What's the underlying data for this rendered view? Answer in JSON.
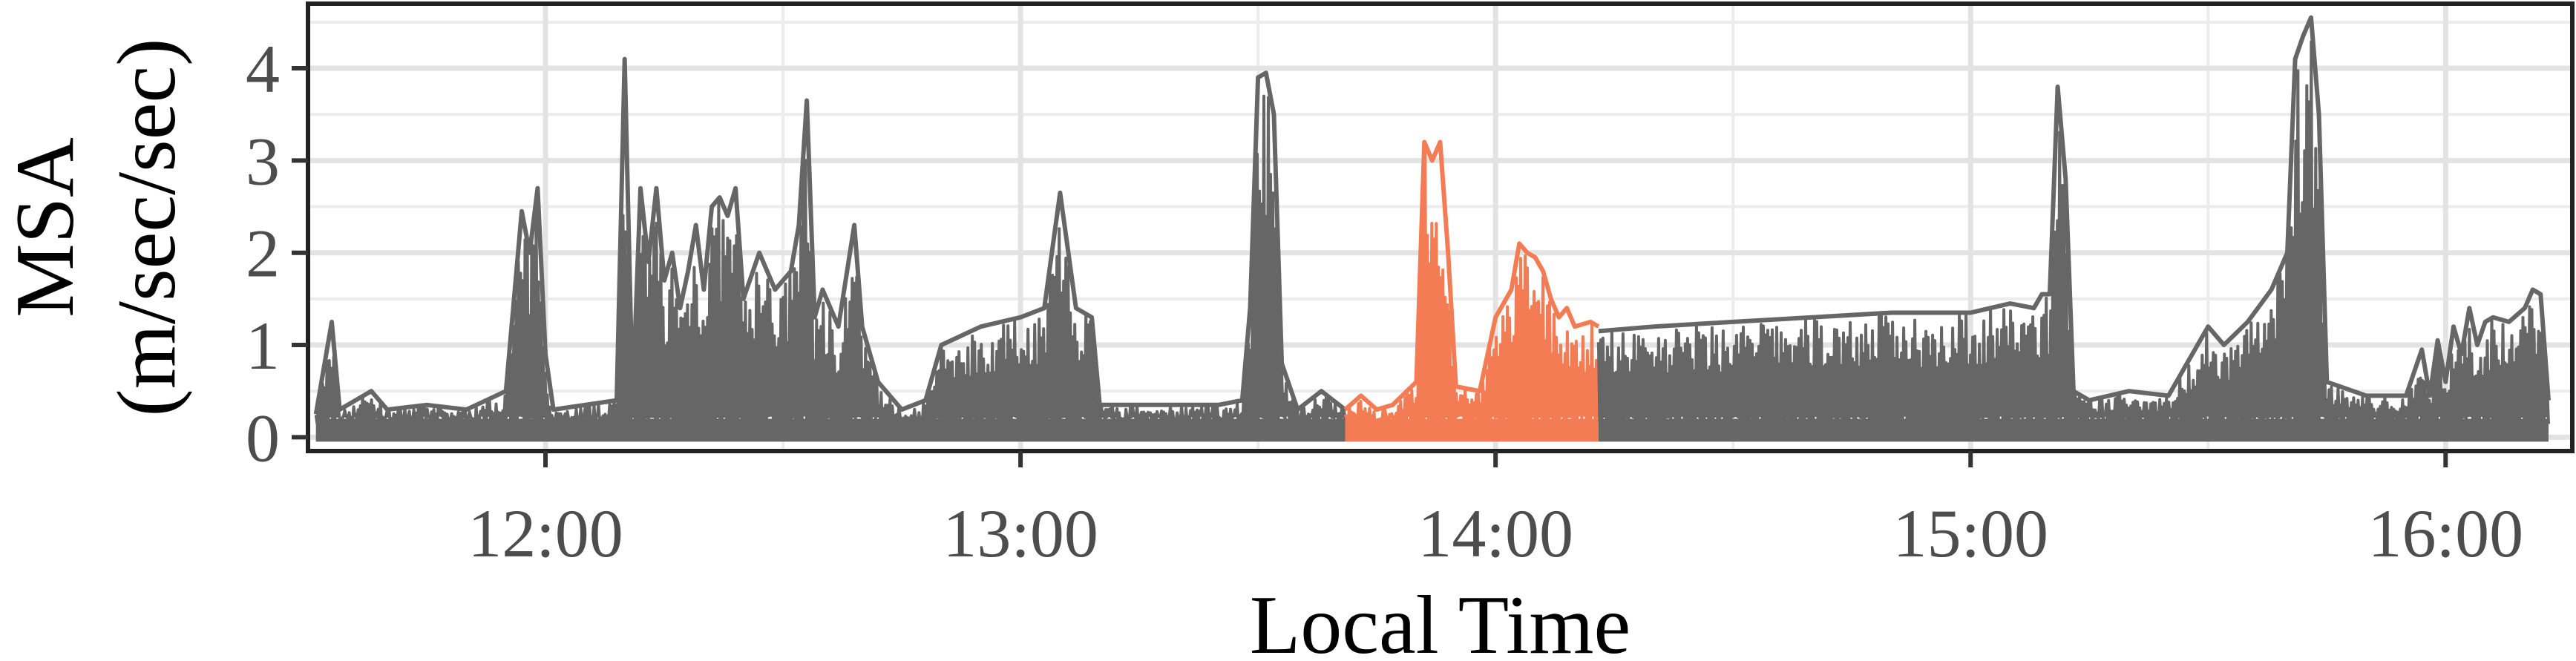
{
  "chart_data": {
    "type": "line",
    "title": "",
    "xlabel": "Local Time",
    "ylabel_lines": [
      "MSA",
      "(m/sec/sec)"
    ],
    "x_unit": "hours (local time)",
    "xlim": [
      "11:30",
      "16:16"
    ],
    "ylim": [
      -0.15,
      4.7
    ],
    "x_tick_labels": [
      "12:00",
      "13:00",
      "14:00",
      "15:00",
      "16:00"
    ],
    "x_ticks": [
      "12:00",
      "13:00",
      "14:00",
      "15:00",
      "16:00"
    ],
    "y_tick_labels": [
      "0",
      "1",
      "2",
      "3",
      "4"
    ],
    "y_ticks": [
      0,
      1,
      2,
      3,
      4
    ],
    "grid": true,
    "legend": "none",
    "series": [
      {
        "color": "#666666",
        "segment_start": "11:31",
        "segment_end": "13:41",
        "upper_envelope": [
          [
            "11:31",
            0.25
          ],
          [
            "11:33",
            1.25
          ],
          [
            "11:34",
            0.3
          ],
          [
            "11:38",
            0.5
          ],
          [
            "11:40",
            0.3
          ],
          [
            "11:45",
            0.35
          ],
          [
            "11:50",
            0.3
          ],
          [
            "11:55",
            0.5
          ],
          [
            "11:57",
            2.45
          ],
          [
            "11:58",
            2.0
          ],
          [
            "11:59",
            2.7
          ],
          [
            "12:00",
            0.9
          ],
          [
            "12:01",
            0.3
          ],
          [
            "12:05",
            0.35
          ],
          [
            "12:09",
            0.4
          ],
          [
            "12:10",
            4.1
          ],
          [
            "12:11",
            0.4
          ],
          [
            "12:12",
            2.7
          ],
          [
            "12:13",
            1.9
          ],
          [
            "12:14",
            2.7
          ],
          [
            "12:15",
            1.7
          ],
          [
            "12:16",
            2.0
          ],
          [
            "12:17",
            1.4
          ],
          [
            "12:18",
            1.8
          ],
          [
            "12:19",
            2.3
          ],
          [
            "12:20",
            1.6
          ],
          [
            "12:21",
            2.5
          ],
          [
            "12:22",
            2.6
          ],
          [
            "12:23",
            2.4
          ],
          [
            "12:24",
            2.7
          ],
          [
            "12:25",
            1.5
          ],
          [
            "12:27",
            2.0
          ],
          [
            "12:28",
            1.8
          ],
          [
            "12:29",
            1.6
          ],
          [
            "12:31",
            1.8
          ],
          [
            "12:32",
            2.3
          ],
          [
            "12:33",
            3.65
          ],
          [
            "12:34",
            1.3
          ],
          [
            "12:35",
            1.6
          ],
          [
            "12:37",
            1.2
          ],
          [
            "12:39",
            2.3
          ],
          [
            "12:40",
            1.2
          ],
          [
            "12:42",
            0.6
          ],
          [
            "12:45",
            0.3
          ],
          [
            "12:48",
            0.4
          ],
          [
            "12:50",
            1.0
          ],
          [
            "12:55",
            1.2
          ],
          [
            "13:00",
            1.3
          ],
          [
            "13:03",
            1.4
          ],
          [
            "13:05",
            2.65
          ],
          [
            "13:07",
            1.4
          ],
          [
            "13:09",
            1.3
          ],
          [
            "13:10",
            0.35
          ],
          [
            "13:15",
            0.35
          ],
          [
            "13:20",
            0.35
          ],
          [
            "13:25",
            0.35
          ],
          [
            "13:28",
            0.4
          ],
          [
            "13:29",
            1.4
          ],
          [
            "13:30",
            3.9
          ],
          [
            "13:31",
            3.95
          ],
          [
            "13:32",
            3.5
          ],
          [
            "13:33",
            0.8
          ],
          [
            "13:35",
            0.3
          ],
          [
            "13:38",
            0.5
          ],
          [
            "13:41",
            0.3
          ]
        ]
      },
      {
        "color": "#f47c54",
        "segment_start": "13:41",
        "segment_end": "14:13",
        "upper_envelope": [
          [
            "13:41",
            0.3
          ],
          [
            "13:43",
            0.45
          ],
          [
            "13:45",
            0.3
          ],
          [
            "13:47",
            0.35
          ],
          [
            "13:50",
            0.6
          ],
          [
            "13:51",
            3.2
          ],
          [
            "13:52",
            3.0
          ],
          [
            "13:53",
            3.2
          ],
          [
            "13:54",
            2.0
          ],
          [
            "13:55",
            0.55
          ],
          [
            "13:58",
            0.5
          ],
          [
            "14:00",
            1.3
          ],
          [
            "14:02",
            1.6
          ],
          [
            "14:03",
            2.1
          ],
          [
            "14:04",
            2.0
          ],
          [
            "14:05",
            1.95
          ],
          [
            "14:06",
            1.8
          ],
          [
            "14:07",
            1.5
          ],
          [
            "14:08",
            1.3
          ],
          [
            "14:09",
            1.4
          ],
          [
            "14:10",
            1.2
          ],
          [
            "14:12",
            1.25
          ],
          [
            "14:13",
            1.2
          ]
        ]
      },
      {
        "color": "#666666",
        "segment_start": "14:13",
        "segment_end": "16:13",
        "upper_envelope": [
          [
            "14:13",
            1.15
          ],
          [
            "14:20",
            1.2
          ],
          [
            "14:30",
            1.25
          ],
          [
            "14:40",
            1.3
          ],
          [
            "14:50",
            1.35
          ],
          [
            "15:00",
            1.35
          ],
          [
            "15:05",
            1.45
          ],
          [
            "15:08",
            1.4
          ],
          [
            "15:09",
            1.55
          ],
          [
            "15:10",
            1.55
          ],
          [
            "15:11",
            3.8
          ],
          [
            "15:12",
            2.8
          ],
          [
            "15:13",
            0.5
          ],
          [
            "15:15",
            0.4
          ],
          [
            "15:20",
            0.5
          ],
          [
            "15:25",
            0.45
          ],
          [
            "15:28",
            0.9
          ],
          [
            "15:30",
            1.2
          ],
          [
            "15:32",
            1.0
          ],
          [
            "15:35",
            1.25
          ],
          [
            "15:38",
            1.6
          ],
          [
            "15:40",
            2.0
          ],
          [
            "15:41",
            4.1
          ],
          [
            "15:42",
            4.35
          ],
          [
            "15:43",
            4.55
          ],
          [
            "15:44",
            3.5
          ],
          [
            "15:45",
            0.6
          ],
          [
            "15:50",
            0.45
          ],
          [
            "15:55",
            0.45
          ],
          [
            "15:57",
            0.95
          ],
          [
            "15:58",
            0.45
          ],
          [
            "15:59",
            1.05
          ],
          [
            "16:00",
            0.6
          ],
          [
            "16:01",
            1.2
          ],
          [
            "16:02",
            0.9
          ],
          [
            "16:03",
            1.4
          ],
          [
            "16:04",
            1.0
          ],
          [
            "16:05",
            1.25
          ],
          [
            "16:06",
            1.3
          ],
          [
            "16:08",
            1.25
          ],
          [
            "16:10",
            1.4
          ],
          [
            "16:11",
            1.6
          ],
          [
            "16:12",
            1.55
          ],
          [
            "16:13",
            0.4
          ]
        ]
      }
    ]
  }
}
